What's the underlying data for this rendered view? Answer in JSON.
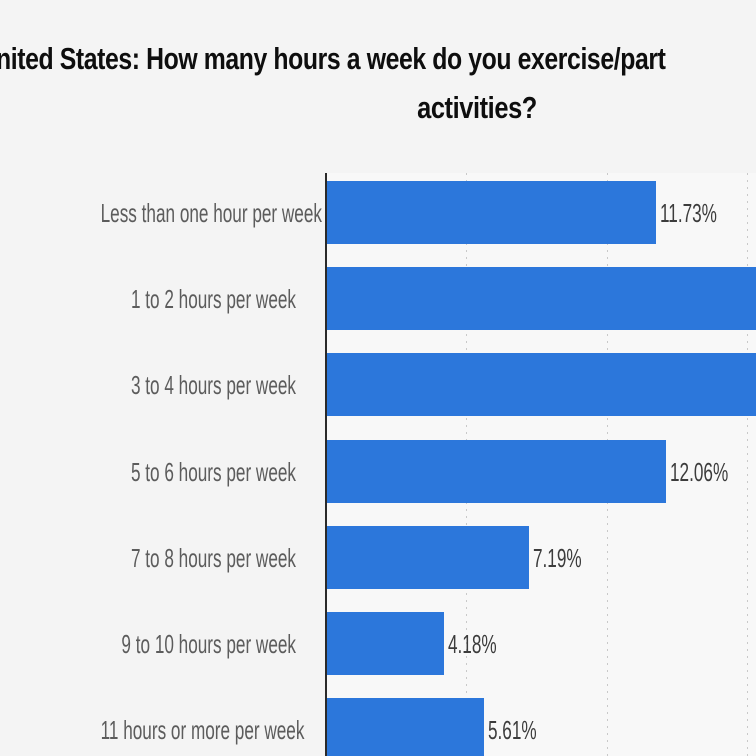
{
  "title": {
    "line1": "nited States: How many hours a week do you exercise/part",
    "line2": "activities?"
  },
  "chart_data": {
    "type": "bar",
    "orientation": "horizontal",
    "title_lines": [
      "nited States: How many hours a week do you exercise/part",
      "activities?"
    ],
    "categories": [
      "Less than one hour per week",
      "1 to 2 hours per week",
      "3 to 4 hours per week",
      "5 to 6 hours per week",
      "7 to 8 hours per week",
      "9 to 10 hours per week",
      "11 hours or more per week"
    ],
    "values": [
      11.73,
      null,
      null,
      12.06,
      7.19,
      4.18,
      5.61
    ],
    "value_labels": [
      "11.73%",
      "",
      "",
      "12.06%",
      "7.19%",
      "4.18%",
      "5.61%"
    ],
    "cropped_bar_indices": [
      1,
      2
    ],
    "unit": "%",
    "xlim_visible": [
      0,
      15.32
    ],
    "gridlines_pct": [
      5,
      10,
      15
    ],
    "grid_style": "dashed-vertical",
    "axis_tick_labels_visible": false,
    "legend": "none",
    "bar_color": "#2c77db",
    "colors": {
      "background": "#f4f4f4",
      "plot_background": "#f8f8f8",
      "bar": "#2c77db",
      "axis_line": "#2a2a2a",
      "gridline": "#c9c9c9",
      "category_text": "#5c5c5c",
      "value_text": "#3c3c3c",
      "title_text": "#0e0e0e"
    }
  }
}
